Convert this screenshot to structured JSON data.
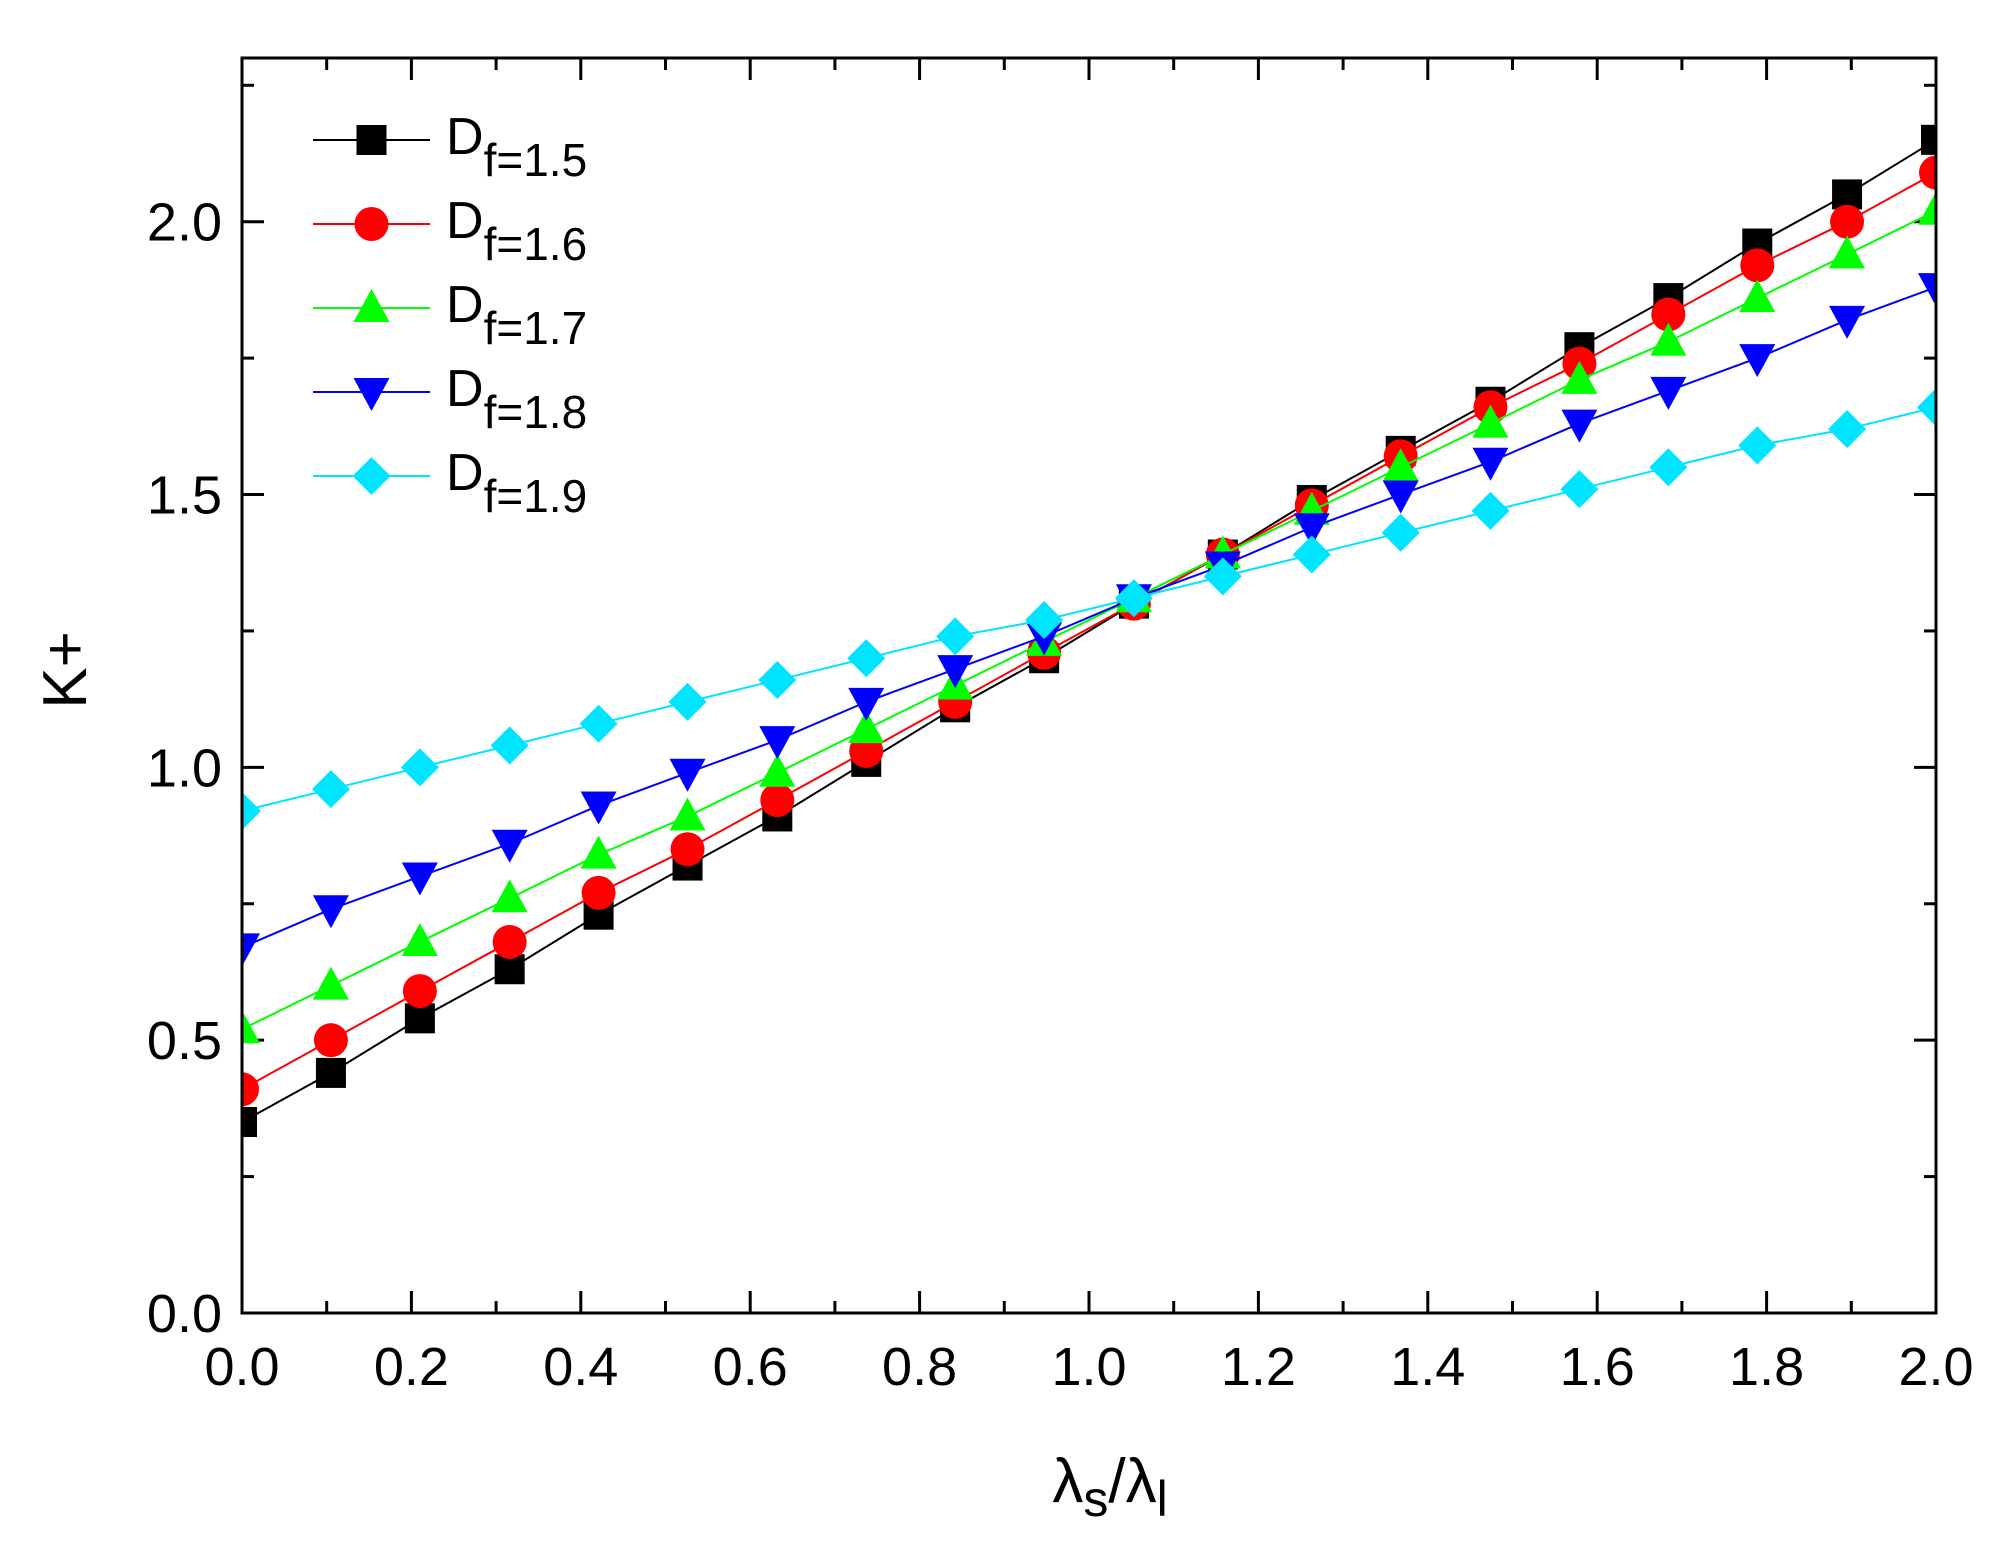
{
  "chart_data": {
    "type": "line",
    "title": "",
    "xlabel": {
      "main": "λ",
      "sub1": "s",
      "slash": "/",
      "main2": "λ",
      "sub2": "l"
    },
    "ylabel": "K+",
    "xlim": [
      0.0,
      2.0
    ],
    "ylim": [
      0.0,
      2.3
    ],
    "xticks": [
      "0.0",
      "0.2",
      "0.4",
      "0.6",
      "0.8",
      "1.0",
      "1.2",
      "1.4",
      "1.6",
      "1.8",
      "2.0"
    ],
    "yticks": [
      "0.0",
      "0.5",
      "1.0",
      "1.5",
      "2.0"
    ],
    "xtick_values": [
      0.0,
      0.2,
      0.4,
      0.6,
      0.8,
      1.0,
      1.2,
      1.4,
      1.6,
      1.8,
      2.0
    ],
    "ytick_values": [
      0.0,
      0.5,
      1.0,
      1.5,
      2.0
    ],
    "legend_position": "top-left",
    "x": [
      0.0,
      0.105,
      0.21,
      0.316,
      0.421,
      0.526,
      0.632,
      0.737,
      0.842,
      0.947,
      1.053,
      1.158,
      1.263,
      1.368,
      1.474,
      1.579,
      1.684,
      1.789,
      1.895,
      2.0
    ],
    "series": [
      {
        "name": "D",
        "sub": "f=1.5",
        "color": "#000000",
        "marker": "square",
        "values": [
          0.35,
          0.44,
          0.54,
          0.63,
          0.73,
          0.82,
          0.91,
          1.01,
          1.11,
          1.2,
          1.3,
          1.39,
          1.49,
          1.58,
          1.67,
          1.77,
          1.86,
          1.96,
          2.05,
          2.15
        ]
      },
      {
        "name": "D",
        "sub": "f=1.6",
        "color": "#ff0000",
        "marker": "circle",
        "values": [
          0.41,
          0.5,
          0.59,
          0.68,
          0.77,
          0.85,
          0.94,
          1.03,
          1.12,
          1.21,
          1.3,
          1.39,
          1.48,
          1.57,
          1.66,
          1.74,
          1.83,
          1.92,
          2.0,
          2.09
        ]
      },
      {
        "name": "D",
        "sub": "f=1.7",
        "color": "#00ff00",
        "marker": "triangle-up",
        "values": [
          0.52,
          0.6,
          0.68,
          0.76,
          0.84,
          0.91,
          0.99,
          1.07,
          1.15,
          1.23,
          1.31,
          1.39,
          1.47,
          1.55,
          1.63,
          1.71,
          1.78,
          1.86,
          1.94,
          2.02
        ]
      },
      {
        "name": "D",
        "sub": "f=1.8",
        "color": "#0000ff",
        "marker": "triangle-down",
        "values": [
          0.67,
          0.74,
          0.8,
          0.86,
          0.93,
          0.99,
          1.05,
          1.12,
          1.18,
          1.24,
          1.31,
          1.37,
          1.44,
          1.5,
          1.56,
          1.63,
          1.69,
          1.75,
          1.82,
          1.88
        ]
      },
      {
        "name": "D",
        "sub": "f=1.9",
        "color": "#00e5ff",
        "marker": "diamond",
        "values": [
          0.92,
          0.96,
          1.0,
          1.04,
          1.08,
          1.12,
          1.16,
          1.2,
          1.24,
          1.27,
          1.31,
          1.35,
          1.39,
          1.43,
          1.47,
          1.51,
          1.55,
          1.59,
          1.62,
          1.66
        ]
      }
    ]
  }
}
